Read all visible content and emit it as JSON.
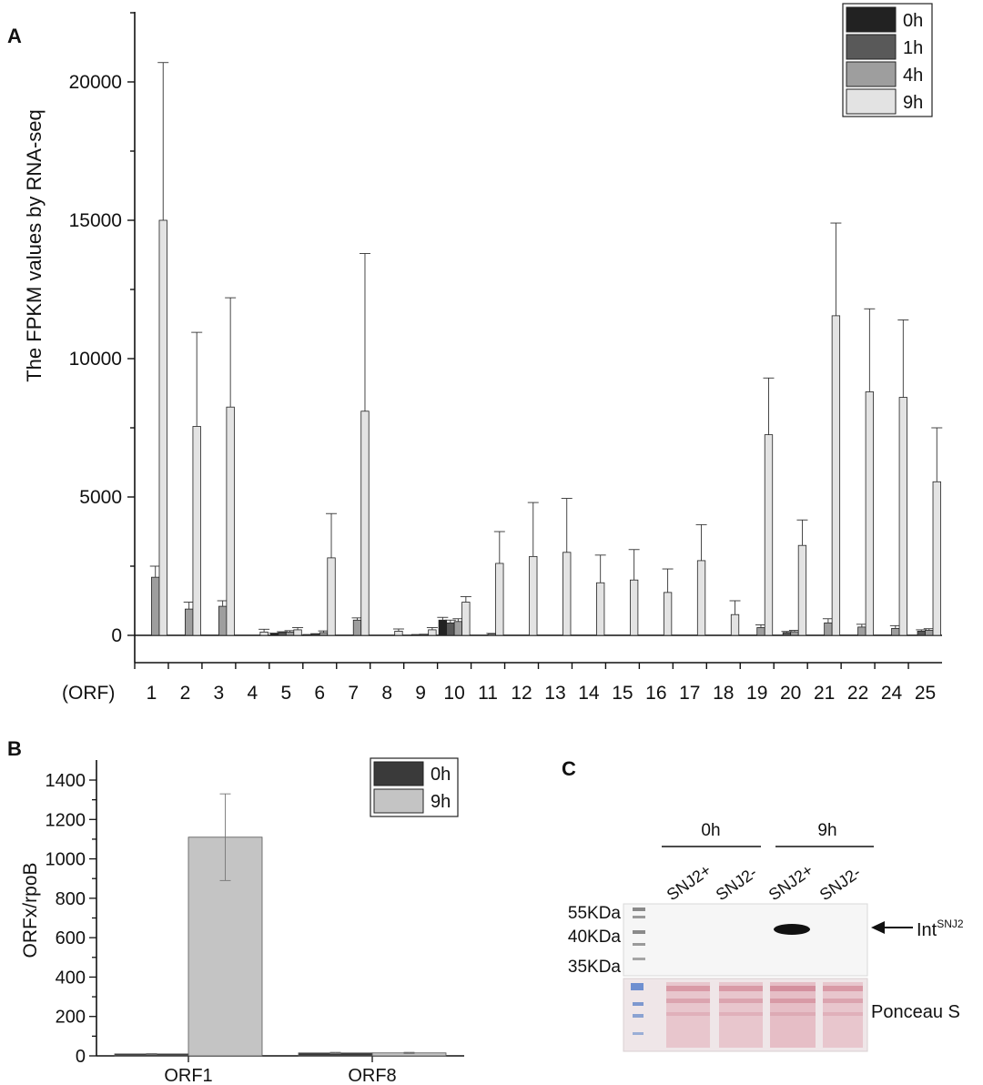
{
  "chart_data": [
    {
      "panel": "A",
      "type": "bar",
      "ylabel": "The FPKM values by RNA-seq",
      "x_prefix": "(ORF)",
      "ylim": [
        0,
        22500
      ],
      "yticks": [
        0,
        5000,
        10000,
        15000,
        20000
      ],
      "categories": [
        "1",
        "2",
        "3",
        "4",
        "5",
        "6",
        "7",
        "8",
        "9",
        "10",
        "11",
        "12",
        "13",
        "14",
        "15",
        "16",
        "17",
        "18",
        "19",
        "20",
        "21",
        "22",
        "24",
        "25"
      ],
      "series": [
        {
          "name": "0h",
          "color": "#222222",
          "values": [
            0,
            0,
            0,
            0,
            60,
            20,
            0,
            0,
            0,
            550,
            0,
            0,
            0,
            0,
            0,
            0,
            0,
            0,
            0,
            0,
            0,
            0,
            0,
            0
          ],
          "errors": [
            0,
            0,
            0,
            0,
            20,
            10,
            0,
            0,
            0,
            100,
            0,
            0,
            0,
            0,
            0,
            0,
            0,
            0,
            0,
            0,
            0,
            0,
            0,
            0
          ]
        },
        {
          "name": "1h",
          "color": "#595959",
          "values": [
            0,
            0,
            0,
            0,
            100,
            40,
            0,
            0,
            20,
            450,
            0,
            0,
            0,
            0,
            0,
            0,
            0,
            0,
            0,
            100,
            0,
            0,
            0,
            150
          ],
          "errors": [
            0,
            0,
            0,
            0,
            30,
            20,
            0,
            0,
            10,
            100,
            0,
            0,
            0,
            0,
            0,
            0,
            0,
            0,
            0,
            40,
            0,
            0,
            0,
            50
          ]
        },
        {
          "name": "4h",
          "color": "#9e9e9e",
          "values": [
            2100,
            950,
            1050,
            0,
            120,
            100,
            550,
            0,
            30,
            500,
            50,
            0,
            0,
            0,
            0,
            0,
            0,
            0,
            280,
            130,
            450,
            300,
            250,
            180
          ],
          "errors": [
            400,
            250,
            200,
            0,
            50,
            60,
            80,
            0,
            10,
            100,
            20,
            0,
            0,
            0,
            0,
            0,
            0,
            0,
            100,
            50,
            150,
            100,
            100,
            60
          ]
        },
        {
          "name": "9h",
          "color": "#e3e3e3",
          "values": [
            15000,
            7550,
            8250,
            120,
            200,
            2800,
            8100,
            150,
            200,
            1200,
            2600,
            2850,
            3000,
            1900,
            2000,
            1550,
            2700,
            750,
            7250,
            3250,
            11550,
            8800,
            8600,
            5550
          ],
          "errors": [
            5700,
            3400,
            3950,
            100,
            80,
            1600,
            5700,
            80,
            80,
            200,
            1150,
            1950,
            1950,
            1000,
            1100,
            850,
            1300,
            500,
            2050,
            920,
            3350,
            3000,
            2800,
            1950
          ]
        }
      ]
    },
    {
      "panel": "B",
      "type": "bar",
      "ylabel": "ORFx/rpoB",
      "ylim": [
        0,
        1500
      ],
      "yticks": [
        0,
        200,
        400,
        600,
        800,
        1000,
        1200,
        1400
      ],
      "categories": [
        "ORF1",
        "ORF8"
      ],
      "series": [
        {
          "name": "0h",
          "color": "#3a3a3a",
          "values": [
            10,
            15
          ],
          "errors": [
            2,
            3
          ]
        },
        {
          "name": "9h",
          "color": "#c4c4c4",
          "values": [
            1110,
            15
          ],
          "errors": [
            220,
            3
          ]
        }
      ]
    }
  ],
  "panel_labels": {
    "a": "A",
    "b": "B",
    "c": "C"
  },
  "blot": {
    "group_0h": "0h",
    "group_9h": "9h",
    "lanes": [
      "SNJ2+",
      "SNJ2-",
      "SNJ2+",
      "SNJ2-"
    ],
    "markers": [
      "55KDa",
      "40KDa",
      "35KDa"
    ],
    "arrow_label": "Int",
    "arrow_label_sup": "SNJ2",
    "stain_label": "Ponceau S"
  }
}
